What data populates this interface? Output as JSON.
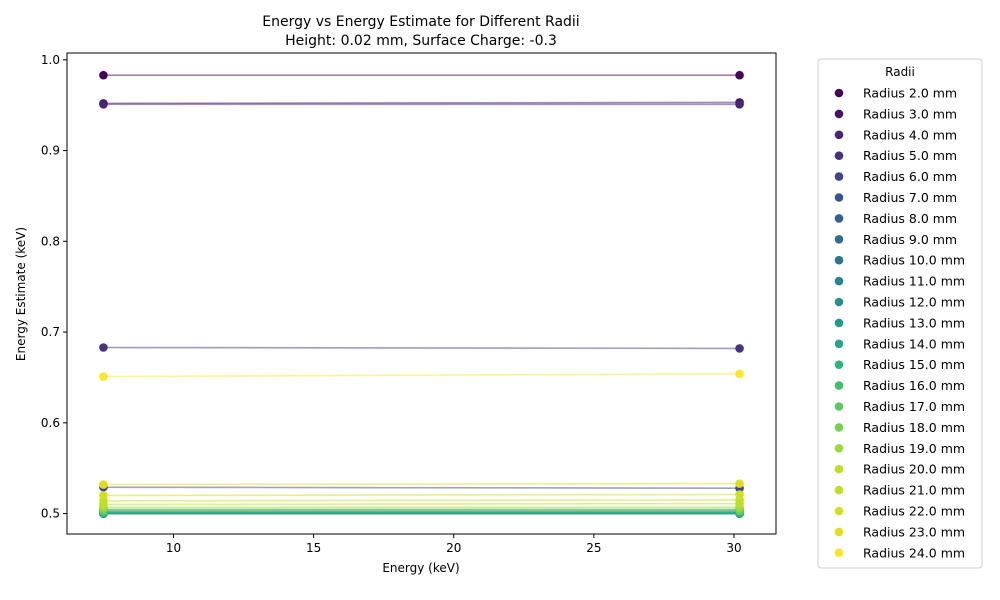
{
  "chart_data": {
    "type": "scatter",
    "title": "Energy vs Energy Estimate for Different Radii",
    "subtitle": "Height: 0.02 mm, Surface Charge: -0.3",
    "xlabel": "Energy (keV)",
    "ylabel": "Energy Estimate (keV)",
    "xlim": [
      6.2,
      31.5
    ],
    "ylim": [
      0.4775,
      1.0075
    ],
    "xticks": [
      10,
      15,
      20,
      25,
      30
    ],
    "yticks": [
      0.5,
      0.6,
      0.7,
      0.8,
      0.9,
      1.0
    ],
    "xtick_labels": [
      "10",
      "15",
      "20",
      "25",
      "30"
    ],
    "ytick_labels": [
      "0.5",
      "0.6",
      "0.7",
      "0.8",
      "0.9",
      "1.0"
    ],
    "grid": false,
    "legend_title": "Radii",
    "legend_position": "outside-right",
    "x": [
      7.5,
      30.2
    ],
    "series": [
      {
        "name": "Radius 2.0 mm",
        "color": "#440154",
        "values": [
          0.983,
          0.983
        ]
      },
      {
        "name": "Radius 3.0 mm",
        "color": "#471365",
        "values": [
          0.952,
          0.953
        ]
      },
      {
        "name": "Radius 4.0 mm",
        "color": "#482475",
        "values": [
          0.951,
          0.951
        ]
      },
      {
        "name": "Radius 5.0 mm",
        "color": "#463480",
        "values": [
          0.683,
          0.682
        ]
      },
      {
        "name": "Radius 6.0 mm",
        "color": "#414487",
        "values": [
          0.529,
          0.528
        ]
      },
      {
        "name": "Radius 7.0 mm",
        "color": "#3b528b",
        "values": [
          0.504,
          0.504
        ]
      },
      {
        "name": "Radius 8.0 mm",
        "color": "#355f8d",
        "values": [
          0.502,
          0.502
        ]
      },
      {
        "name": "Radius 9.0 mm",
        "color": "#2f6c8e",
        "values": [
          0.501,
          0.501
        ]
      },
      {
        "name": "Radius 10.0 mm",
        "color": "#2a788e",
        "values": [
          0.5,
          0.5
        ]
      },
      {
        "name": "Radius 11.0 mm",
        "color": "#25848e",
        "values": [
          0.5,
          0.5
        ]
      },
      {
        "name": "Radius 12.0 mm",
        "color": "#21918c",
        "values": [
          0.5,
          0.5
        ]
      },
      {
        "name": "Radius 13.0 mm",
        "color": "#1e9c89",
        "values": [
          0.5,
          0.5
        ]
      },
      {
        "name": "Radius 14.0 mm",
        "color": "#22a884",
        "values": [
          0.501,
          0.501
        ]
      },
      {
        "name": "Radius 15.0 mm",
        "color": "#2fb47c",
        "values": [
          0.501,
          0.501
        ]
      },
      {
        "name": "Radius 16.0 mm",
        "color": "#44bf70",
        "values": [
          0.502,
          0.502
        ]
      },
      {
        "name": "Radius 17.0 mm",
        "color": "#5ec962",
        "values": [
          0.503,
          0.503
        ]
      },
      {
        "name": "Radius 18.0 mm",
        "color": "#7ad151",
        "values": [
          0.505,
          0.505
        ]
      },
      {
        "name": "Radius 19.0 mm",
        "color": "#9bd93c",
        "values": [
          0.507,
          0.507
        ]
      },
      {
        "name": "Radius 20.0 mm",
        "color": "#bddf26",
        "values": [
          0.51,
          0.511
        ]
      },
      {
        "name": "Radius 21.0 mm",
        "color": "#bddf26",
        "values": [
          0.514,
          0.515
        ]
      },
      {
        "name": "Radius 22.0 mm",
        "color": "#d0e11c",
        "values": [
          0.52,
          0.521
        ]
      },
      {
        "name": "Radius 23.0 mm",
        "color": "#e1dd1a",
        "values": [
          0.532,
          0.533
        ]
      },
      {
        "name": "Radius 24.0 mm",
        "color": "#fde725",
        "values": [
          0.651,
          0.654
        ]
      }
    ]
  }
}
